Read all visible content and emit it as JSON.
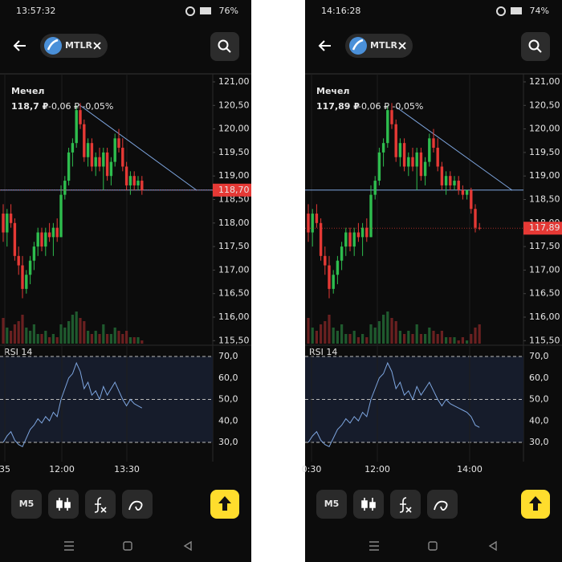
{
  "screens": [
    {
      "status_time": "13:57:32",
      "battery": "76%",
      "ticker": "MTLR",
      "name": "Мечел",
      "price": "118,7 ₽",
      "change": "-0,06 ₽ -0,05%",
      "last_price": {
        "value": 118.7,
        "label": "118,70"
      },
      "level": 118.7,
      "yticks": [
        {
          "value": 121,
          "label": "121,00"
        },
        {
          "value": 120.5,
          "label": "120,50"
        },
        {
          "value": 120,
          "label": "120,00"
        },
        {
          "value": 119.5,
          "label": "119,50"
        },
        {
          "value": 119,
          "label": "119,00"
        },
        {
          "value": 118.5,
          "label": "118,50"
        },
        {
          "value": 118,
          "label": "118,00"
        },
        {
          "value": 117.5,
          "label": "117,50"
        },
        {
          "value": 117,
          "label": "117,00"
        },
        {
          "value": 116.5,
          "label": "116,50"
        },
        {
          "value": 116,
          "label": "116,00"
        },
        {
          "value": 115.5,
          "label": "115,50"
        }
      ],
      "rsi_label": "RSI 14",
      "rsi_ticks": [
        {
          "value": 70,
          "label": "70,0"
        },
        {
          "value": 60,
          "label": "60,0"
        },
        {
          "value": 50,
          "label": "50,0"
        },
        {
          "value": 40,
          "label": "40,0"
        },
        {
          "value": 30,
          "label": "30,0"
        }
      ],
      "xticks": [
        "35",
        "12:00",
        "13:30"
      ],
      "interval": "M5",
      "up_color": "#2ebd4e",
      "down_color": "#e53935",
      "candles": [
        [
          118.2,
          118.4,
          117.6,
          117.8
        ],
        [
          117.8,
          118.3,
          117.5,
          118.2
        ],
        [
          118.2,
          118.4,
          117.9,
          118.0
        ],
        [
          118.0,
          118.1,
          117.2,
          117.3
        ],
        [
          117.3,
          117.5,
          116.9,
          117.1
        ],
        [
          117.1,
          117.3,
          116.4,
          116.6
        ],
        [
          116.6,
          117.0,
          116.5,
          116.9
        ],
        [
          116.9,
          117.3,
          116.7,
          117.2
        ],
        [
          117.2,
          117.6,
          117.0,
          117.5
        ],
        [
          117.5,
          117.9,
          117.3,
          117.8
        ],
        [
          117.8,
          117.9,
          117.4,
          117.5
        ],
        [
          117.5,
          117.9,
          117.3,
          117.8
        ],
        [
          117.8,
          118.0,
          117.6,
          117.7
        ],
        [
          117.7,
          118.0,
          117.3,
          117.9
        ],
        [
          117.9,
          118.1,
          117.6,
          117.7
        ],
        [
          117.7,
          118.8,
          117.7,
          118.6
        ],
        [
          118.6,
          119.0,
          118.5,
          118.9
        ],
        [
          118.9,
          119.6,
          118.8,
          119.5
        ],
        [
          119.5,
          119.8,
          119.2,
          119.7
        ],
        [
          119.7,
          120.5,
          119.6,
          120.4
        ],
        [
          120.4,
          120.55,
          120.0,
          120.1
        ],
        [
          120.1,
          120.2,
          119.3,
          119.4
        ],
        [
          119.4,
          119.8,
          119.2,
          119.7
        ],
        [
          119.7,
          119.8,
          119.1,
          119.2
        ],
        [
          119.2,
          119.5,
          119.0,
          119.4
        ],
        [
          119.4,
          119.6,
          119.1,
          119.2
        ],
        [
          119.2,
          119.6,
          118.7,
          119.5
        ],
        [
          119.5,
          119.6,
          118.9,
          119.0
        ],
        [
          119.0,
          119.4,
          118.8,
          119.3
        ],
        [
          119.3,
          119.9,
          119.2,
          119.8
        ],
        [
          119.8,
          120.0,
          119.5,
          119.6
        ],
        [
          119.6,
          119.8,
          119.1,
          119.2
        ],
        [
          119.2,
          119.3,
          118.7,
          118.8
        ],
        [
          118.8,
          119.1,
          118.6,
          119.0
        ],
        [
          119.0,
          119.1,
          118.7,
          118.8
        ],
        [
          118.8,
          119.0,
          118.7,
          118.9
        ],
        [
          118.9,
          119.0,
          118.6,
          118.7
        ]
      ],
      "volumes": [
        8,
        5,
        4,
        6,
        7,
        9,
        5,
        4,
        6,
        3,
        3,
        4,
        2,
        3,
        2,
        6,
        5,
        7,
        9,
        10,
        8,
        7,
        4,
        3,
        4,
        3,
        6,
        3,
        3,
        5,
        4,
        3,
        4,
        2,
        2,
        2,
        1
      ],
      "rsi": [
        30,
        33,
        35,
        31,
        29,
        28,
        32,
        36,
        38,
        41,
        39,
        42,
        40,
        44,
        42,
        50,
        55,
        60,
        62,
        67,
        63,
        55,
        58,
        52,
        54,
        50,
        56,
        52,
        55,
        58,
        54,
        50,
        47,
        50,
        48,
        47,
        46
      ]
    },
    {
      "status_time": "14:16:28",
      "battery": "74%",
      "ticker": "MTLR",
      "name": "Мечел",
      "price": "117,89 ₽",
      "change": "-0,06 ₽ -0,05%",
      "last_price": {
        "value": 117.89,
        "label": "117,89"
      },
      "level": 118.7,
      "yticks": [
        {
          "value": 121,
          "label": "121,00"
        },
        {
          "value": 120.5,
          "label": "120,50"
        },
        {
          "value": 120,
          "label": "120,00"
        },
        {
          "value": 119.5,
          "label": "119,50"
        },
        {
          "value": 119,
          "label": "119,00"
        },
        {
          "value": 118.5,
          "label": "118,50"
        },
        {
          "value": 118,
          "label": "118,00"
        },
        {
          "value": 117.5,
          "label": "117,50"
        },
        {
          "value": 117,
          "label": "117,00"
        },
        {
          "value": 116.5,
          "label": "116,50"
        },
        {
          "value": 116,
          "label": "116,00"
        },
        {
          "value": 115.5,
          "label": "115,50"
        }
      ],
      "rsi_label": "RSI 14",
      "rsi_ticks": [
        {
          "value": 70,
          "label": "70,0"
        },
        {
          "value": 60,
          "label": "60,0"
        },
        {
          "value": 50,
          "label": "50,0"
        },
        {
          "value": 40,
          "label": "40,0"
        },
        {
          "value": 30,
          "label": "30,0"
        }
      ],
      "xticks": [
        "0:30",
        "12:00",
        "14:00"
      ],
      "interval": "M5",
      "up_color": "#2ebd4e",
      "down_color": "#e53935",
      "candles": [
        [
          118.2,
          118.4,
          117.6,
          117.8
        ],
        [
          117.8,
          118.3,
          117.5,
          118.2
        ],
        [
          118.2,
          118.4,
          117.9,
          118.0
        ],
        [
          118.0,
          118.1,
          117.2,
          117.3
        ],
        [
          117.3,
          117.5,
          116.9,
          117.1
        ],
        [
          117.1,
          117.3,
          116.4,
          116.6
        ],
        [
          116.6,
          117.0,
          116.5,
          116.9
        ],
        [
          116.9,
          117.3,
          116.7,
          117.2
        ],
        [
          117.2,
          117.6,
          117.0,
          117.5
        ],
        [
          117.5,
          117.9,
          117.3,
          117.8
        ],
        [
          117.8,
          117.9,
          117.4,
          117.5
        ],
        [
          117.5,
          117.9,
          117.3,
          117.8
        ],
        [
          117.8,
          118.0,
          117.6,
          117.7
        ],
        [
          117.7,
          118.0,
          117.3,
          117.9
        ],
        [
          117.9,
          118.1,
          117.6,
          117.7
        ],
        [
          117.7,
          118.8,
          117.7,
          118.6
        ],
        [
          118.6,
          119.0,
          118.5,
          118.9
        ],
        [
          118.9,
          119.6,
          118.8,
          119.5
        ],
        [
          119.5,
          119.8,
          119.2,
          119.7
        ],
        [
          119.7,
          120.5,
          119.6,
          120.4
        ],
        [
          120.4,
          120.55,
          120.0,
          120.1
        ],
        [
          120.1,
          120.2,
          119.3,
          119.4
        ],
        [
          119.4,
          119.8,
          119.2,
          119.7
        ],
        [
          119.7,
          119.8,
          119.1,
          119.2
        ],
        [
          119.2,
          119.5,
          119.0,
          119.4
        ],
        [
          119.4,
          119.6,
          119.1,
          119.2
        ],
        [
          119.2,
          119.6,
          118.7,
          119.5
        ],
        [
          119.5,
          119.6,
          118.9,
          119.0
        ],
        [
          119.0,
          119.4,
          118.8,
          119.3
        ],
        [
          119.3,
          119.9,
          119.2,
          119.8
        ],
        [
          119.8,
          120.0,
          119.5,
          119.6
        ],
        [
          119.6,
          119.8,
          119.1,
          119.2
        ],
        [
          119.2,
          119.3,
          118.7,
          118.8
        ],
        [
          118.8,
          119.1,
          118.6,
          119.0
        ],
        [
          119.0,
          119.1,
          118.7,
          118.8
        ],
        [
          118.8,
          119.0,
          118.7,
          118.9
        ],
        [
          118.9,
          119.0,
          118.6,
          118.7
        ],
        [
          118.7,
          118.8,
          118.5,
          118.6
        ],
        [
          118.6,
          118.7,
          118.5,
          118.7
        ],
        [
          118.7,
          118.75,
          118.2,
          118.3
        ],
        [
          118.3,
          118.4,
          117.8,
          117.9
        ],
        [
          117.9,
          118.0,
          117.85,
          117.89
        ]
      ],
      "volumes": [
        8,
        5,
        4,
        6,
        7,
        9,
        5,
        4,
        6,
        3,
        3,
        4,
        2,
        3,
        2,
        6,
        5,
        7,
        9,
        10,
        8,
        7,
        4,
        3,
        4,
        3,
        6,
        3,
        3,
        5,
        4,
        3,
        4,
        2,
        2,
        2,
        1,
        2,
        1,
        3,
        5,
        6
      ],
      "rsi": [
        30,
        33,
        35,
        31,
        29,
        28,
        32,
        36,
        38,
        41,
        39,
        42,
        40,
        44,
        42,
        50,
        55,
        60,
        62,
        67,
        63,
        55,
        58,
        52,
        54,
        50,
        56,
        52,
        55,
        58,
        54,
        50,
        47,
        50,
        48,
        47,
        46,
        45,
        44,
        42,
        38,
        37
      ]
    }
  ]
}
